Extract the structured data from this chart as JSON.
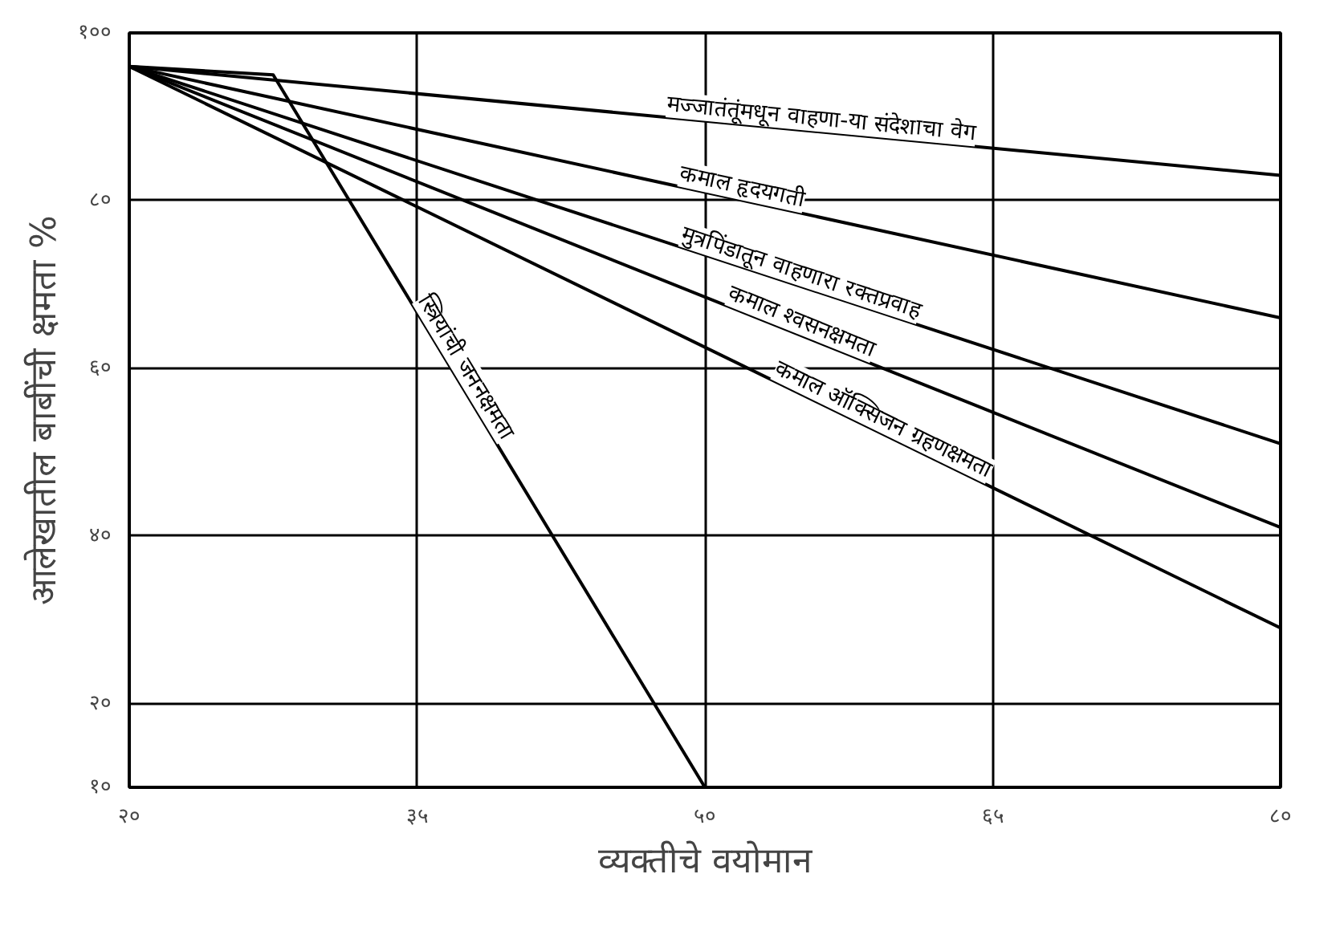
{
  "chart_data": {
    "type": "line",
    "xlabel": "व्यक्तीचे वयोमान",
    "ylabel": "आलेखातील बाबींची क्षमता %",
    "xlim": [
      20,
      80
    ],
    "ylim": [
      10,
      100
    ],
    "xticks": [
      {
        "value": 20,
        "label": "२०"
      },
      {
        "value": 35,
        "label": "३५"
      },
      {
        "value": 50,
        "label": "५०"
      },
      {
        "value": 65,
        "label": "६५"
      },
      {
        "value": 80,
        "label": "८०"
      }
    ],
    "yticks": [
      {
        "value": 10,
        "label": "१०"
      },
      {
        "value": 20,
        "label": "२०"
      },
      {
        "value": 40,
        "label": "४०"
      },
      {
        "value": 60,
        "label": "६०"
      },
      {
        "value": 80,
        "label": "८०"
      },
      {
        "value": 100,
        "label": "१००"
      }
    ],
    "grid": true,
    "legend": false,
    "marker": "none",
    "line_style": "solid",
    "series": [
      {
        "name": "मज्जातंतूंमधून वाहणा-या संदेशाचा वेग",
        "color": "#000000",
        "x": [
          20,
          80
        ],
        "values": [
          96,
          83
        ]
      },
      {
        "name": "कमाल हृदयगती",
        "color": "#000000",
        "x": [
          20,
          80
        ],
        "values": [
          96,
          66
        ]
      },
      {
        "name": "मुत्रपिंडातून वाहणारा रक्तप्रवाह",
        "color": "#000000",
        "x": [
          20,
          80
        ],
        "values": [
          96,
          51
        ]
      },
      {
        "name": "कमाल श्वसनक्षमता",
        "color": "#000000",
        "x": [
          20,
          80
        ],
        "values": [
          96,
          41
        ]
      },
      {
        "name": "कमाल ऑक्सिजन ग्रहणक्षमता",
        "color": "#000000",
        "x": [
          20,
          80
        ],
        "values": [
          96,
          29
        ]
      },
      {
        "name": "स्त्रियांची जननक्षमता",
        "color": "#000000",
        "x": [
          20,
          27.5,
          50
        ],
        "values": [
          96,
          95,
          10
        ]
      }
    ]
  }
}
